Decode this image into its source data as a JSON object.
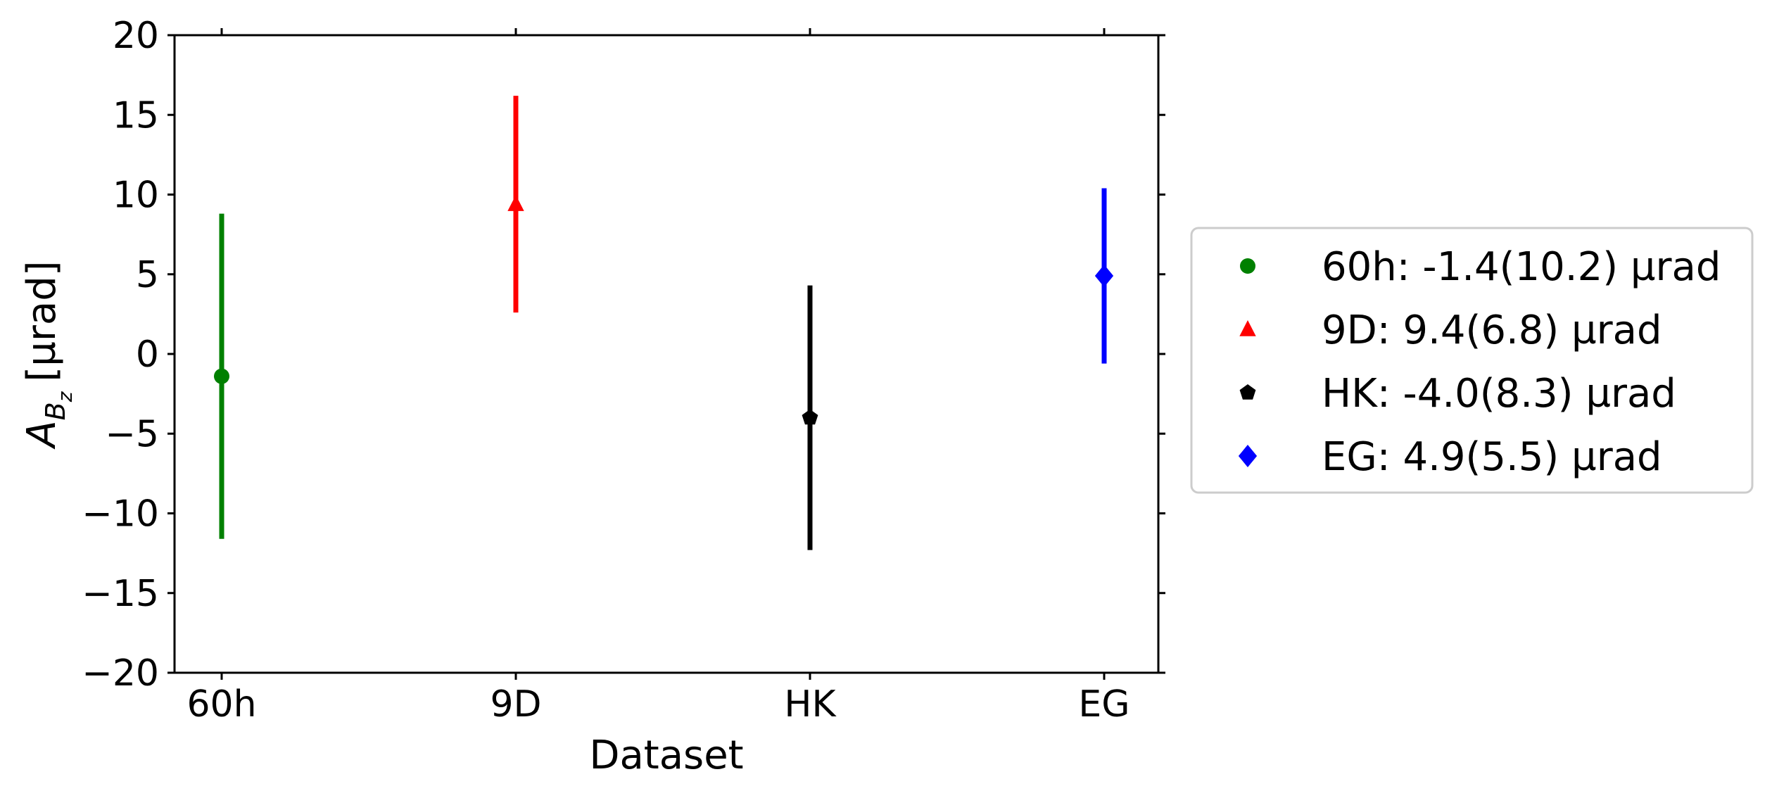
{
  "chart_data": {
    "type": "scatter",
    "title": "",
    "xlabel": "Dataset",
    "ylabel_main": "A",
    "ylabel_sub1": "B",
    "ylabel_sub2": "z",
    "ylabel_unit": "[µrad]",
    "categories": [
      "60h",
      "9D",
      "HK",
      "EG"
    ],
    "ylim": [
      -20,
      20
    ],
    "yticks": [
      20,
      15,
      10,
      5,
      0,
      -5,
      -10,
      -15,
      -20
    ],
    "ytick_labels": [
      "20",
      "15",
      "10",
      "5",
      "0",
      "−5",
      "−10",
      "−15",
      "−20"
    ],
    "grid": false,
    "legend_placement": "outside right",
    "series": [
      {
        "name": "60h: -1.4(10.2) µrad",
        "category": "60h",
        "value": -1.4,
        "error": 10.2,
        "color": "#008000",
        "marker": "circle"
      },
      {
        "name": "9D: 9.4(6.8) µrad",
        "category": "9D",
        "value": 9.4,
        "error": 6.8,
        "color": "#ff0000",
        "marker": "triangle"
      },
      {
        "name": "HK: -4.0(8.3) µrad",
        "category": "HK",
        "value": -4.0,
        "error": 8.3,
        "color": "#000000",
        "marker": "pentagon"
      },
      {
        "name": "EG: 4.9(5.5) µrad",
        "category": "EG",
        "value": 4.9,
        "error": 5.5,
        "color": "#0000ff",
        "marker": "diamond"
      }
    ]
  }
}
